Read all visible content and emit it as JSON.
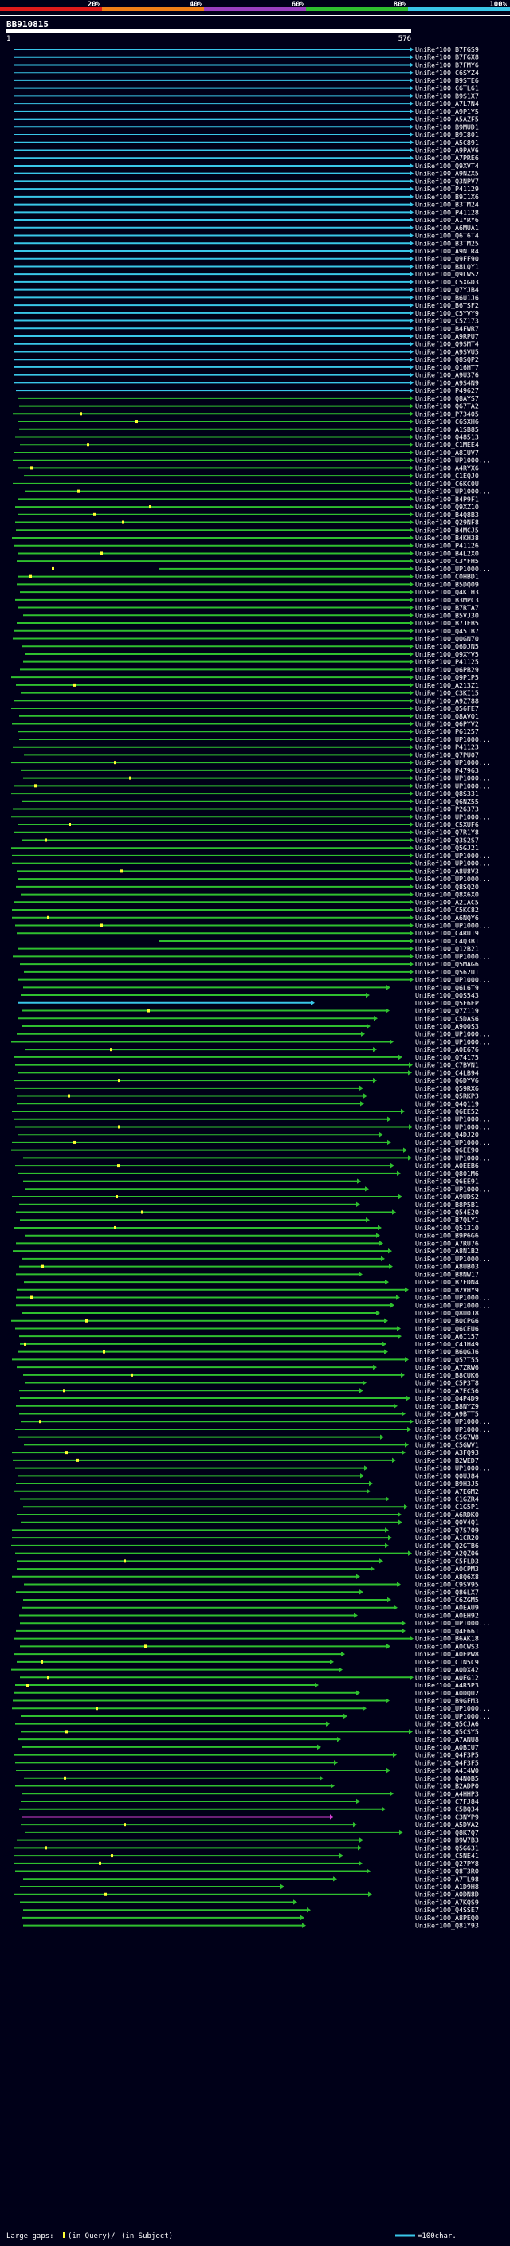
{
  "chart_data": {
    "type": "alignment-overview",
    "query_id": "BB910815",
    "query_start": 1,
    "query_length": 576,
    "scale": {
      "ticks": [
        {
          "label": "20%",
          "color": "#e01a1a"
        },
        {
          "label": "40%",
          "color": "#f07f17"
        },
        {
          "label": "60%",
          "color": "#9a3fc0"
        },
        {
          "label": "80%",
          "color": "#2fbf2f"
        },
        {
          "label": "100%",
          "color": "#39c6e8"
        }
      ]
    },
    "identity_colors": {
      "high": "#39c6e8",
      "mid": "#2fbf2f",
      "magenta": "#d43fd4",
      "low": "#e01a1a"
    },
    "subject_labels": [
      "UniRef100_B7FGS9",
      "UniRef100_B7FGX8",
      "UniRef100_B7FMY6",
      "UniRef100_C6SYZ4",
      "UniRef100_B9STE6",
      "UniRef100_C6TL61",
      "UniRef100_B9S1X7",
      "UniRef100_A7L7N4",
      "UniRef100_A9P1Y5",
      "UniRef100_A5AZF5",
      "UniRef100_B9MUD1",
      "UniRef100_B9I801",
      "UniRef100_A5C891",
      "UniRef100_A9PAV6",
      "UniRef100_A7PRE6",
      "UniRef100_Q9XVT4",
      "UniRef100_A9NZX5",
      "UniRef100_Q3NPV7",
      "UniRef100_P41129",
      "UniRef100_B9I1X6",
      "UniRef100_B3TM24",
      "UniRef100_P41128",
      "UniRef100_A1YRY6",
      "UniRef100_A6MUA1",
      "UniRef100_Q6T6T4",
      "UniRef100_B3TM25",
      "UniRef100_A9NTR4",
      "UniRef100_Q9FF90",
      "UniRef100_B8LQY1",
      "UniRef100_Q9LWS2",
      "UniRef100_C5XGD3",
      "UniRef100_Q7YJB4",
      "UniRef100_B6U1J6",
      "UniRef100_B6TSF2",
      "UniRef100_C5YVY9",
      "UniRef100_C5Z173",
      "UniRef100_B4FWR7",
      "UniRef100_A9RPU7",
      "UniRef100_Q9SMT4",
      "UniRef100_A9SVU5",
      "UniRef100_Q8SQP2",
      "UniRef100_Q16HT7",
      "UniRef100_A9U376",
      "UniRef100_A9S4N9",
      "UniRef100_P49627",
      "UniRef100_Q8AYS7",
      "UniRef100_Q67TA2",
      "UniRef100_P73405",
      "UniRef100_C6SXH6",
      "UniRef100_A1SB85",
      "UniRef100_Q48513",
      "UniRef100_C1MEE4",
      "UniRef100_A8IUV7",
      "UniRef100_UP1000...",
      "UniRef100_A4RYX6",
      "UniRef100_C1EQJ0",
      "UniRef100_C6KC0U",
      "UniRef100_UP1000...",
      "UniRef100_B4P9F1",
      "UniRef100_Q9XZ10",
      "UniRef100_B4Q8B3",
      "UniRef100_Q29NF8",
      "UniRef100_B4MCJ5",
      "UniRef100_B4KH38",
      "UniRef100_P41126",
      "UniRef100_B4L2X0",
      "UniRef100_C3YFH5",
      "UniRef100_UP1000...",
      "UniRef100_C0HBD1",
      "UniRef100_B5DQ09",
      "UniRef100_Q4KTH3",
      "UniRef100_B3MPC3",
      "UniRef100_B7RTA7",
      "UniRef100_B5VJ30",
      "UniRef100_B7JEB5",
      "UniRef100_Q451B7",
      "UniRef100_Q0GN70",
      "UniRef100_Q6DJN5",
      "UniRef100_Q9XYV5",
      "UniRef100_P41125",
      "UniRef100_Q6PB29",
      "UniRef100_Q9P1P5",
      "UniRef100_A213Z1",
      "UniRef100_C3KI15",
      "UniRef100_A9Z788",
      "UniRef100_Q56FE7",
      "UniRef100_Q8AVQ1",
      "UniRef100_Q6PYV2",
      "UniRef100_P61257",
      "UniRef100_UP1000...",
      "UniRef100_P41123",
      "UniRef100_Q7PU07",
      "UniRef100_UP1000...",
      "UniRef100_P47963",
      "UniRef100_UP1000...",
      "UniRef100_UP1000...",
      "UniRef100_Q8S331",
      "UniRef100_Q6NZ55",
      "UniRef100_P26373",
      "UniRef100_UP1000...",
      "UniRef100_C5XUF6",
      "UniRef100_Q7R1Y8",
      "UniRef100_Q3S2S7",
      "UniRef100_Q5GJ21",
      "UniRef100_UP1000...",
      "UniRef100_UP1000...",
      "UniRef100_A8U8V3",
      "UniRef100_UP1000...",
      "UniRef100_Q8SQ20",
      "UniRef100_Q8X6X0",
      "UniRef100_A2IAC5",
      "UniRef100_C5KC82",
      "UniRef100_A6NQY6",
      "UniRef100_UP1000...",
      "UniRef100_C4RU19",
      "UniRef100_C4Q3B1",
      "UniRef100_Q12B21",
      "UniRef100_UP1000...",
      "UniRef100_Q5MAG6",
      "UniRef100_Q562U1",
      "UniRef100_UP1000...",
      "UniRef100_Q6L6T9",
      "UniRef100_Q0S543",
      "UniRef100_Q5F6EP",
      "UniRef100_Q7Z119",
      "UniRef100_C5DAS6",
      "UniRef100_A9Q0S3",
      "UniRef100_UP1000...",
      "UniRef100_UP1000...",
      "UniRef100_A0E676",
      "UniRef100_Q74175",
      "UniRef100_C7BVN1",
      "UniRef100_C4LB94",
      "UniRef100_Q6DYV6",
      "UniRef100_Q59RX6",
      "UniRef100_Q5RKP3",
      "UniRef100_Q4Q119",
      "UniRef100_Q6EE52",
      "UniRef100_UP1000...",
      "UniRef100_UP1000...",
      "UniRef100_Q4DJ20",
      "UniRef100_UP1000...",
      "UniRef100_Q6EE90",
      "UniRef100_UP1000...",
      "UniRef100_A0EEB6",
      "UniRef100_Q801M6",
      "UniRef100_Q6EE91",
      "UniRef100_UP1000...",
      "UniRef100_A9UDS2",
      "UniRef100_B8P5B1",
      "UniRef100_Q54E20",
      "UniRef100_B7QLY1",
      "UniRef100_Q51310",
      "UniRef100_B9P6G6",
      "UniRef100_A7RU76",
      "UniRef100_A8N1B2",
      "UniRef100_UP1000...",
      "UniRef100_A8UB03",
      "UniRef100_B8NW17",
      "UniRef100_B7FDN4",
      "UniRef100_B2VHY9",
      "UniRef100_UP1000...",
      "UniRef100_UP1000...",
      "UniRef100_Q8U0J8",
      "UniRef100_B0CPG6",
      "UniRef100_Q6CEU6",
      "UniRef100_A6I157",
      "UniRef100_C4JH49",
      "UniRef100_B6QGJ6",
      "UniRef100_Q57T55",
      "UniRef100_A7ZRW6",
      "UniRef100_B8CUK6",
      "UniRef100_C5P3T8",
      "UniRef100_A7EC56",
      "UniRef100_Q4P4D9",
      "UniRef100_B8NYZ9",
      "UniRef100_A9BTT5",
      "UniRef100_UP1000...",
      "UniRef100_UP1000...",
      "UniRef100_C5G7W8",
      "UniRef100_C5GWV1",
      "UniRef100_A3FQ93",
      "UniRef100_B2WED7",
      "UniRef100_UP1000...",
      "UniRef100_Q0UJ84",
      "UniRef100_B9H3J5",
      "UniRef100_A7EGM2",
      "UniRef100_C1GZR4",
      "UniRef100_C1G5P1",
      "UniRef100_A6RDK0",
      "UniRef100_Q0V4Q1",
      "UniRef100_Q7S709",
      "UniRef100_A1CR20",
      "UniRef100_Q2GTB6",
      "UniRef100_A2QZ06",
      "UniRef100_C5FLD3",
      "UniRef100_A0CPM3",
      "UniRef100_A8Q6X8",
      "UniRef100_C9SV95",
      "UniRef100_Q86LX7",
      "UniRef100_C6ZGM5",
      "UniRef100_A0EAU9",
      "UniRef100_A0EH92",
      "UniRef100_UP1000...",
      "UniRef100_Q4E661",
      "UniRef100_B6AK18",
      "UniRef100_A0CWS3",
      "UniRef100_A0EPW8",
      "UniRef100_C1N5C9",
      "UniRef100_A0DX42",
      "UniRef100_A0EG12",
      "UniRef100_A4R5P3",
      "UniRef100_A0DQU2",
      "UniRef100_B9GFM3",
      "UniRef100_UP1000...",
      "UniRef100_UP1000...",
      "UniRef100_Q5CJA6",
      "UniRef100_Q5CSY5",
      "UniRef100_A7ANU8",
      "UniRef100_A0BIU7",
      "UniRef100_Q4F3P5",
      "UniRef100_Q4F3F5",
      "UniRef100_A4I4W0",
      "UniRef100_Q4N0B5",
      "UniRef100_B2ADP0",
      "UniRef100_A4HHP3",
      "UniRef100_C7FJ84",
      "UniRef100_C5BQ34",
      "UniRef100_C3NYP9",
      "UniRef100_A5DVA2",
      "UniRef100_Q8K7Q7",
      "UniRef100_B9W7B3",
      "UniRef100_Q5G631",
      "UniRef100_C5NE41",
      "UniRef100_Q27PY8",
      "UniRef100_Q8T3R0",
      "UniRef100_A7TL98",
      "UniRef100_A1D9H8",
      "UniRef100_A0DN8D",
      "UniRef100_A7KQS9",
      "UniRef100_Q4SSE7",
      "UniRef100_A8PEQ0",
      "UniRef100_Q81Y93"
    ],
    "legend": {
      "large_gaps_label": "Large gaps:",
      "in_query_label": "(in Query)/",
      "in_subject_label": "(in Subject)",
      "scale_label": "=100char."
    }
  }
}
